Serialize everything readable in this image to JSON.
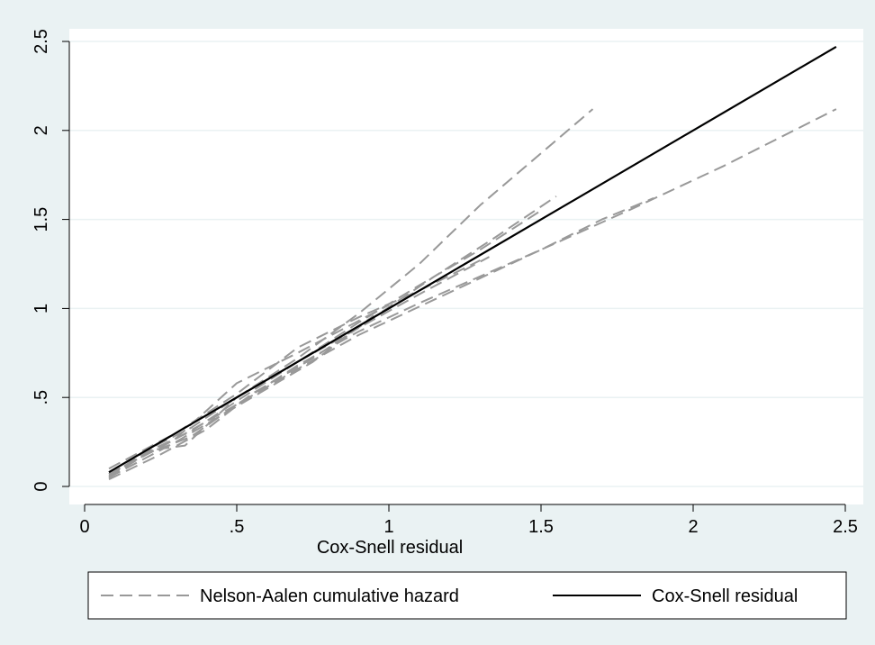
{
  "chart_data": {
    "type": "line",
    "title": "",
    "xlabel": "Cox-Snell residual",
    "ylabel": "",
    "xlim": [
      0,
      2.5
    ],
    "ylim": [
      0,
      2.5
    ],
    "x_ticks": [
      {
        "value": 0,
        "label": "0"
      },
      {
        "value": 0.5,
        "label": ".5"
      },
      {
        "value": 1,
        "label": "1"
      },
      {
        "value": 1.5,
        "label": "1.5"
      },
      {
        "value": 2,
        "label": "2"
      },
      {
        "value": 2.5,
        "label": "2.5"
      }
    ],
    "y_ticks": [
      {
        "value": 0,
        "label": "0"
      },
      {
        "value": 0.5,
        "label": ".5"
      },
      {
        "value": 1,
        "label": "1"
      },
      {
        "value": 1.5,
        "label": "1.5"
      },
      {
        "value": 2,
        "label": "2"
      },
      {
        "value": 2.5,
        "label": "2.5"
      }
    ],
    "grid": "horizontal",
    "legend_position": "bottom",
    "legend": [
      {
        "label": "Nelson-Aalen cumulative hazard",
        "style": "dashed",
        "color": "#999999"
      },
      {
        "label": "Cox-Snell residual",
        "style": "solid",
        "color": "#000000"
      }
    ],
    "series": [
      {
        "group": "Nelson-Aalen cumulative hazard",
        "color": "#999999",
        "dash": "dashed",
        "x": [
          0.08,
          0.2,
          0.35,
          0.5,
          0.7,
          0.9,
          1.1,
          1.3,
          1.67
        ],
        "y": [
          0.05,
          0.2,
          0.33,
          0.5,
          0.72,
          0.97,
          1.25,
          1.58,
          2.12
        ]
      },
      {
        "group": "Nelson-Aalen cumulative hazard",
        "color": "#999999",
        "dash": "dashed",
        "x": [
          0.08,
          0.25,
          0.4,
          0.55,
          0.75,
          0.95,
          1.15,
          1.35,
          1.55
        ],
        "y": [
          0.04,
          0.18,
          0.32,
          0.52,
          0.72,
          0.95,
          1.18,
          1.4,
          1.63
        ]
      },
      {
        "group": "Nelson-Aalen cumulative hazard",
        "color": "#999999",
        "dash": "dashed",
        "x": [
          0.08,
          0.2,
          0.35,
          0.5,
          0.7,
          0.9,
          1.1,
          1.3,
          1.5
        ],
        "y": [
          0.06,
          0.19,
          0.31,
          0.48,
          0.7,
          0.92,
          1.13,
          1.33,
          1.55
        ]
      },
      {
        "group": "Nelson-Aalen cumulative hazard",
        "color": "#999999",
        "dash": "dashed",
        "x": [
          0.08,
          0.2,
          0.33,
          0.5,
          0.7,
          0.9,
          1.1,
          1.33
        ],
        "y": [
          0.05,
          0.2,
          0.23,
          0.5,
          0.7,
          0.89,
          1.08,
          1.29
        ]
      },
      {
        "group": "Nelson-Aalen cumulative hazard",
        "color": "#999999",
        "dash": "dashed",
        "x": [
          0.08,
          0.2,
          0.35,
          0.5,
          0.7,
          0.9,
          1.1,
          1.3,
          1.5,
          1.8,
          2.1,
          2.47
        ],
        "y": [
          0.05,
          0.18,
          0.28,
          0.46,
          0.68,
          0.87,
          1.03,
          1.18,
          1.33,
          1.56,
          1.8,
          2.12
        ]
      },
      {
        "group": "Nelson-Aalen cumulative hazard",
        "color": "#999999",
        "dash": "dashed",
        "x": [
          0.08,
          0.25,
          0.5,
          0.7,
          0.9,
          1.1,
          1.3,
          1.5,
          1.7,
          1.87
        ],
        "y": [
          0.07,
          0.22,
          0.46,
          0.66,
          0.85,
          1.01,
          1.17,
          1.33,
          1.5,
          1.62
        ]
      },
      {
        "group": "Nelson-Aalen cumulative hazard",
        "color": "#999999",
        "dash": "dashed",
        "x": [
          0.08,
          0.3,
          0.5,
          0.7,
          0.9,
          1.1,
          1.3
        ],
        "y": [
          0.1,
          0.3,
          0.52,
          0.78,
          0.95,
          1.1,
          1.27
        ]
      },
      {
        "group": "Nelson-Aalen cumulative hazard",
        "color": "#999999",
        "dash": "dashed",
        "x": [
          0.08,
          0.3,
          0.5,
          0.7,
          0.9,
          1.0
        ],
        "y": [
          0.07,
          0.27,
          0.58,
          0.75,
          0.93,
          1.02
        ]
      },
      {
        "group": "Nelson-Aalen cumulative hazard",
        "color": "#999999",
        "dash": "dashed",
        "x": [
          0.08,
          0.3,
          0.55,
          0.75,
          0.95
        ],
        "y": [
          0.05,
          0.25,
          0.5,
          0.7,
          0.96
        ]
      },
      {
        "group": "Cox-Snell residual",
        "color": "#000000",
        "dash": "solid",
        "x": [
          0.08,
          2.47
        ],
        "y": [
          0.08,
          2.47
        ]
      }
    ]
  }
}
